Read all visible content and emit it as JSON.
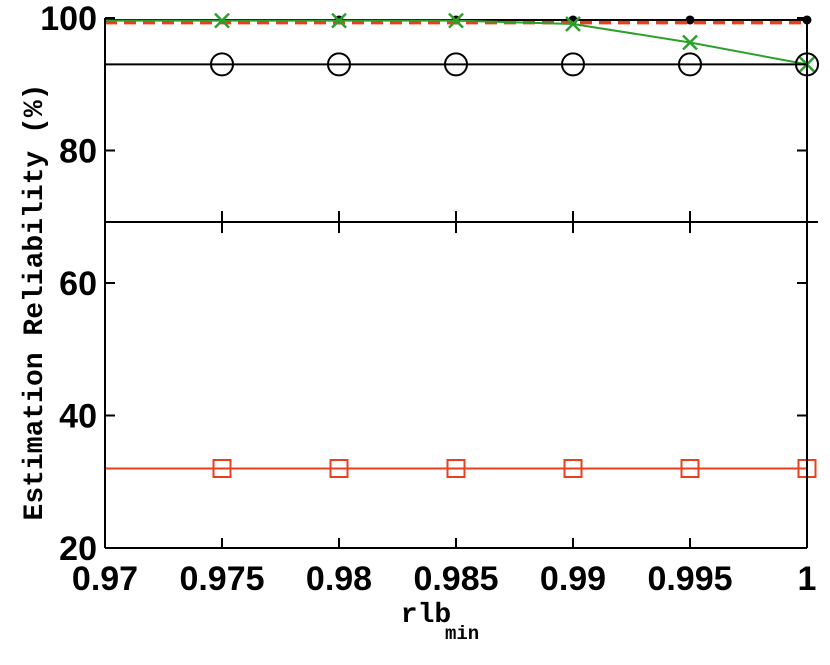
{
  "chart_data": {
    "type": "line",
    "xlabel": "rlb",
    "xlabel_subscript": "min",
    "ylabel": "Estimation Reliability (%)",
    "xlim": [
      0.97,
      1.0
    ],
    "ylim": [
      20,
      100
    ],
    "x_ticks": [
      "0.97",
      "0.975",
      "0.98",
      "0.985",
      "0.99",
      "0.995",
      "1"
    ],
    "y_ticks": [
      "20",
      "40",
      "60",
      "80",
      "100"
    ],
    "grid": false,
    "legend": "none",
    "series": [
      {
        "color": "#000000",
        "marker": "dot",
        "line": "solid",
        "x": [
          0.97,
          0.975,
          0.98,
          0.985,
          0.99,
          0.995,
          1.0
        ],
        "y": [
          99.7,
          99.7,
          99.7,
          99.7,
          99.7,
          99.7,
          99.7
        ],
        "marker_x": [
          0.98,
          0.985,
          0.99,
          0.995,
          1.0
        ]
      },
      {
        "color": "#e8401c",
        "marker": "none",
        "line": "dashed",
        "x": [
          0.97,
          0.975,
          0.98,
          0.985,
          0.99,
          0.995,
          1.0
        ],
        "y": [
          99.3,
          99.3,
          99.3,
          99.3,
          99.3,
          99.3,
          99.3
        ],
        "marker_x": []
      },
      {
        "color": "#2ca02c",
        "marker": "x",
        "line": "solid",
        "x": [
          0.97,
          0.975,
          0.98,
          0.985,
          0.99,
          0.995,
          1.0
        ],
        "y": [
          99.6,
          99.6,
          99.6,
          99.6,
          99.1,
          96.3,
          93.0
        ],
        "marker_x": [
          0.975,
          0.98,
          0.985,
          0.99,
          0.995,
          1.0
        ]
      },
      {
        "color": "#000000",
        "marker": "circle",
        "line": "solid",
        "x": [
          0.97,
          0.975,
          0.98,
          0.985,
          0.99,
          0.995,
          1.0
        ],
        "y": [
          93.0,
          93.0,
          93.0,
          93.0,
          93.0,
          93.0,
          93.0
        ],
        "marker_x": [
          0.975,
          0.98,
          0.985,
          0.99,
          0.995,
          1.0
        ]
      },
      {
        "color": "#e8401c",
        "marker": "square",
        "line": "solid",
        "x": [
          0.97,
          0.975,
          0.98,
          0.985,
          0.99,
          0.995,
          1.0
        ],
        "y": [
          32.0,
          32.0,
          32.0,
          32.0,
          32.0,
          32.0,
          32.0
        ],
        "marker_x": [
          0.975,
          0.98,
          0.985,
          0.99,
          0.995,
          1.0
        ]
      }
    ],
    "annotations": [
      {
        "type": "horizontal-line",
        "y": 69.2,
        "color": "#000000"
      }
    ]
  }
}
